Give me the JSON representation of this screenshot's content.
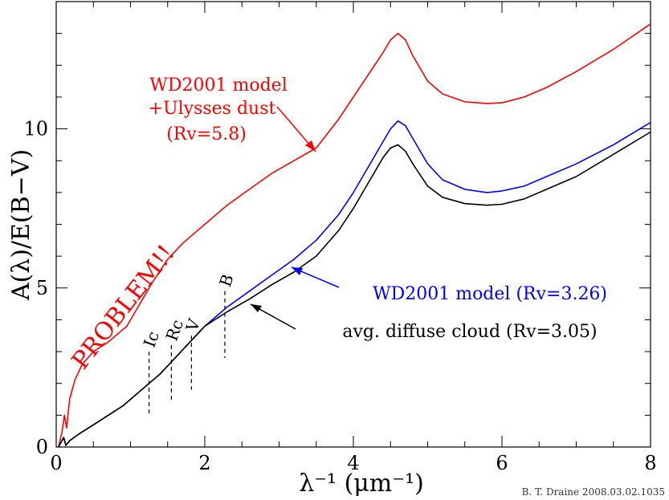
{
  "chart_data": {
    "type": "line",
    "xlabel": "λ⁻¹ (μm⁻¹)",
    "ylabel": "A(λ)/E(B−V)",
    "xlim": [
      0,
      8
    ],
    "ylim": [
      0,
      14
    ],
    "x_ticks": [
      0,
      2,
      4,
      6,
      8
    ],
    "x_tick_labels": [
      "0",
      "2",
      "4",
      "6",
      "8"
    ],
    "y_ticks": [
      0,
      5,
      10
    ],
    "y_tick_labels": [
      "0",
      "5",
      "10"
    ],
    "grid": false,
    "colors": {
      "red": "#ff0000",
      "blue": "#0000ff",
      "black": "#000000"
    },
    "series": [
      {
        "label_lines": [
          "WD2001 model",
          "+Ulysses dust",
          "(Rv=5.8)"
        ],
        "color": "#ff0000",
        "x": [
          0.03,
          0.08,
          0.11,
          0.14,
          0.18,
          0.25,
          0.35,
          0.5,
          0.7,
          0.9,
          0.95,
          1.1,
          1.3,
          1.5,
          1.7,
          2.0,
          2.3,
          2.6,
          2.9,
          3.2,
          3.5,
          3.8,
          4.0,
          4.2,
          4.4,
          4.5,
          4.6,
          4.7,
          4.8,
          5.0,
          5.2,
          5.5,
          5.8,
          6.0,
          6.3,
          6.6,
          7.0,
          7.5,
          8.0
        ],
        "y": [
          0.0,
          0.5,
          1.0,
          0.6,
          1.5,
          2.1,
          2.6,
          3.0,
          3.3,
          3.7,
          3.8,
          4.4,
          5.2,
          5.9,
          6.4,
          7.0,
          7.6,
          8.1,
          8.6,
          9.0,
          9.4,
          10.3,
          11.0,
          11.7,
          12.4,
          12.8,
          13.0,
          12.8,
          12.3,
          11.5,
          11.1,
          10.85,
          10.8,
          10.82,
          11.0,
          11.3,
          11.8,
          12.5,
          13.3
        ]
      },
      {
        "label": "WD2001 model (Rv=3.26)",
        "color": "#0000ff",
        "x": [
          0.03,
          0.1,
          0.13,
          0.18,
          0.3,
          0.5,
          0.7,
          0.9,
          1.0,
          1.2,
          1.4,
          1.6,
          1.8,
          2.0,
          2.3,
          2.6,
          2.9,
          3.2,
          3.5,
          3.8,
          4.0,
          4.2,
          4.4,
          4.5,
          4.6,
          4.7,
          4.8,
          5.0,
          5.2,
          5.5,
          5.8,
          6.0,
          6.3,
          6.6,
          7.0,
          7.5,
          8.0
        ],
        "y": [
          0.0,
          0.3,
          0.05,
          0.2,
          0.4,
          0.7,
          1.0,
          1.3,
          1.5,
          1.9,
          2.3,
          2.8,
          3.3,
          3.8,
          4.4,
          4.9,
          5.4,
          5.9,
          6.5,
          7.3,
          8.0,
          8.8,
          9.6,
          10.0,
          10.25,
          10.1,
          9.7,
          8.9,
          8.4,
          8.1,
          8.0,
          8.05,
          8.2,
          8.5,
          8.9,
          9.5,
          10.2
        ]
      },
      {
        "label": "avg. diffuse cloud (Rv=3.05)",
        "color": "#000000",
        "x": [
          0.03,
          0.1,
          0.13,
          0.18,
          0.3,
          0.5,
          0.7,
          0.9,
          1.0,
          1.2,
          1.4,
          1.6,
          1.8,
          2.0,
          2.3,
          2.6,
          2.9,
          3.2,
          3.5,
          3.8,
          4.0,
          4.2,
          4.4,
          4.5,
          4.6,
          4.7,
          4.8,
          5.0,
          5.2,
          5.5,
          5.8,
          6.0,
          6.3,
          6.6,
          7.0,
          7.5,
          8.0
        ],
        "y": [
          0.0,
          0.3,
          0.05,
          0.2,
          0.4,
          0.7,
          1.0,
          1.3,
          1.5,
          1.9,
          2.3,
          2.8,
          3.3,
          3.8,
          4.25,
          4.65,
          5.1,
          5.5,
          6.0,
          6.8,
          7.5,
          8.3,
          9.1,
          9.4,
          9.5,
          9.3,
          8.9,
          8.2,
          7.85,
          7.65,
          7.6,
          7.63,
          7.8,
          8.1,
          8.5,
          9.2,
          9.9
        ]
      }
    ],
    "bands": [
      {
        "label": "Ic",
        "x": 1.25
      },
      {
        "label": "Rc",
        "x": 1.55
      },
      {
        "label": "V",
        "x": 1.82
      },
      {
        "label": "B",
        "x": 2.27
      }
    ],
    "annotations": {
      "problem": "PROBLEM!!",
      "signature": "B. T. Draine 2008.03.02.1035"
    }
  }
}
